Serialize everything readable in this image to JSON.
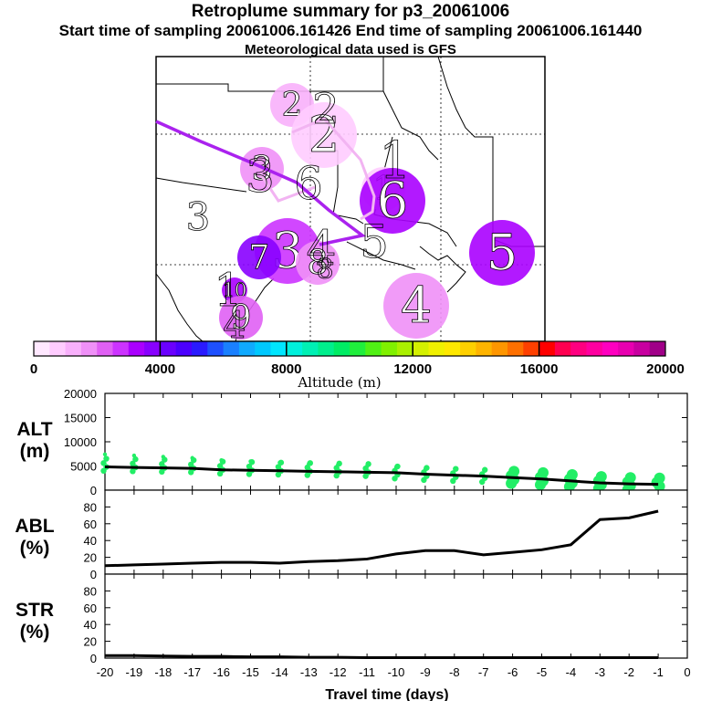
{
  "header": {
    "title": "Retroplume summary for p3_20061006",
    "sampling": "Start time of sampling 20061006.161426     End time of sampling 20061006.161440",
    "met": "Meteorological data used is GFS"
  },
  "map": {
    "clusters": [
      {
        "label": "2",
        "alt": 1200,
        "size": "medium"
      },
      {
        "label": "2",
        "alt": 700,
        "size": "large"
      },
      {
        "label": "3",
        "alt": 1500,
        "size": "medium"
      },
      {
        "label": "1",
        "alt": 800,
        "size": "medium"
      },
      {
        "label": "6",
        "alt": 3200,
        "size": "large"
      },
      {
        "label": "3",
        "alt": 2600,
        "size": "large"
      },
      {
        "label": "7",
        "alt": 3900,
        "size": "medium"
      },
      {
        "label": "8",
        "alt": 1800,
        "size": "medium"
      },
      {
        "label": "5",
        "alt": 3000,
        "size": "large"
      },
      {
        "label": "10",
        "alt": 3300,
        "size": "small"
      },
      {
        "label": "9",
        "alt": 2100,
        "size": "medium"
      },
      {
        "label": "4",
        "alt": 1800,
        "size": "large"
      }
    ],
    "plain_labels": [
      "2",
      "3",
      "6",
      "1",
      "3",
      "4",
      "8",
      "5",
      "1",
      "4"
    ]
  },
  "colorbar": {
    "title": "Altitude (m)",
    "ticks": [
      "0",
      "4000",
      "8000",
      "12000",
      "16000",
      "20000"
    ],
    "colors": [
      "#ffe8ff",
      "#ffccff",
      "#f8b0fb",
      "#ef90f7",
      "#e060f4",
      "#cc33ff",
      "#aa00ff",
      "#8800ff",
      "#6a00ff",
      "#4b00ff",
      "#2a1aff",
      "#1e50ff",
      "#1a80ff",
      "#10aaff",
      "#00c8ff",
      "#00e6ff",
      "#00f0dc",
      "#00f0b4",
      "#00ee8c",
      "#00ec64",
      "#20ee3c",
      "#50f014",
      "#80f000",
      "#aaf000",
      "#d4f000",
      "#f0f000",
      "#ffe800",
      "#ffd000",
      "#ffb400",
      "#ff9600",
      "#ff7000",
      "#ff4000",
      "#ff0000",
      "#ff0050",
      "#ff0080",
      "#ff00a0",
      "#ff00c0",
      "#e800b0",
      "#c800a0",
      "#a00088"
    ]
  },
  "panels": {
    "alt_label": [
      "ALT",
      "(m)"
    ],
    "abl_label": [
      "ABL",
      "(%)"
    ],
    "str_label": [
      "STR",
      "(%)"
    ],
    "alt_ticks": [
      "20000",
      "15000",
      "10000",
      "5000",
      "0"
    ],
    "pct_ticks": [
      "80",
      "60",
      "40",
      "20",
      "0"
    ],
    "x_ticks": [
      "-20",
      "-19",
      "-18",
      "-17",
      "-16",
      "-15",
      "-14",
      "-13",
      "-12",
      "-11",
      "-10",
      "-9",
      "-8",
      "-7",
      "-6",
      "-5",
      "-4",
      "-3",
      "-2",
      "-1",
      "0"
    ],
    "xlabel": "Travel time (days)"
  },
  "chart_data": [
    {
      "type": "line",
      "title": "ALT (m)",
      "x": [
        -20,
        -19,
        -18,
        -17,
        -16,
        -15,
        -14,
        -13,
        -12,
        -11,
        -10,
        -9,
        -8,
        -7,
        -6,
        -5,
        -4,
        -3,
        -2,
        -1
      ],
      "values": [
        4800,
        4700,
        4600,
        4500,
        4200,
        4100,
        4000,
        3900,
        3800,
        3700,
        3600,
        3300,
        3100,
        2900,
        2600,
        2300,
        1900,
        1500,
        1300,
        1200
      ],
      "ylim": [
        0,
        20000
      ],
      "xlim": [
        -20,
        0
      ],
      "scatter_color": "#22ee66"
    },
    {
      "type": "line",
      "title": "ABL (%)",
      "x": [
        -20,
        -19,
        -18,
        -17,
        -16,
        -15,
        -14,
        -13,
        -12,
        -11,
        -10,
        -9,
        -8,
        -7,
        -6,
        -5,
        -4,
        -3,
        -2,
        -1
      ],
      "values": [
        10,
        11,
        12,
        13,
        14,
        14,
        13,
        15,
        16,
        18,
        24,
        28,
        28,
        23,
        26,
        29,
        35,
        65,
        67,
        75
      ],
      "ylim": [
        0,
        100
      ],
      "xlim": [
        -20,
        0
      ]
    },
    {
      "type": "line",
      "title": "STR (%)",
      "x": [
        -20,
        -19,
        -18,
        -17,
        -16,
        -15,
        -14,
        -13,
        -12,
        -11,
        -10,
        -9,
        -8,
        -7,
        -6,
        -5,
        -4,
        -3,
        -2,
        -1
      ],
      "values": [
        3,
        3,
        2.5,
        2,
        2,
        1.5,
        1.5,
        1,
        1,
        0.5,
        0.5,
        0.5,
        0.5,
        0.5,
        0.5,
        0.5,
        0.5,
        0.5,
        0.5,
        0.5
      ],
      "ylim": [
        0,
        100
      ],
      "xlim": [
        -20,
        0
      ]
    }
  ]
}
